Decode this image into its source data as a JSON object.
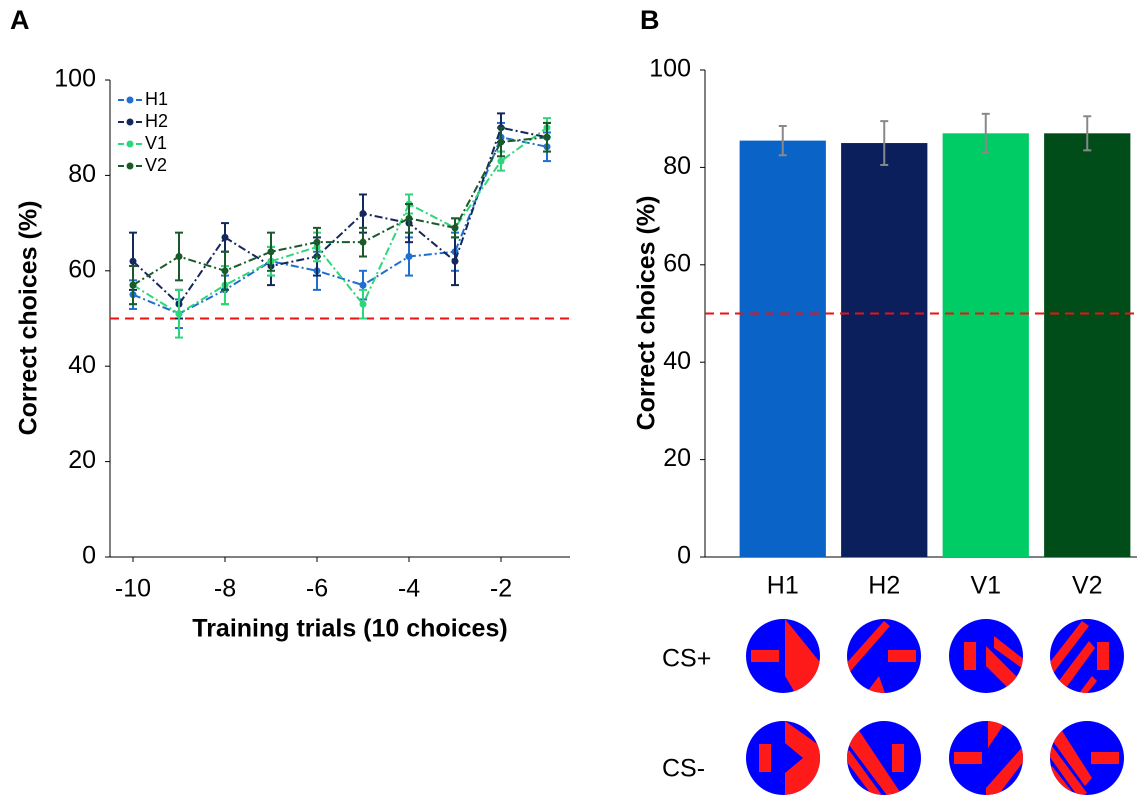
{
  "chart_data": [
    {
      "type": "line",
      "panel_label": "A",
      "xlabel": "Training trials (10 choices)",
      "ylabel": "Correct choices (%)",
      "x": [
        -10,
        -9,
        -8,
        -7,
        -6,
        -5,
        -4,
        -3,
        -2,
        -1
      ],
      "xlim": [
        -10.5,
        -0.5
      ],
      "xticks": [
        -10,
        -8,
        -6,
        -4,
        -2
      ],
      "ylim": [
        0,
        100
      ],
      "yticks": [
        0,
        20,
        40,
        60,
        80,
        100
      ],
      "hline": 50,
      "hline_color": "#ee1111",
      "legend": "upper left",
      "series": [
        {
          "name": "H1",
          "color": "#1f6fd0",
          "values": [
            55,
            51,
            56,
            62,
            60,
            57,
            63,
            64,
            88,
            86
          ],
          "errors": [
            3,
            3,
            3,
            3,
            4,
            3,
            4,
            4,
            3,
            3
          ]
        },
        {
          "name": "H2",
          "color": "#14285e",
          "values": [
            62,
            53,
            67,
            61,
            63,
            72,
            70,
            62,
            90,
            88
          ],
          "errors": [
            6,
            3,
            3,
            4,
            4,
            4,
            4,
            5,
            3,
            3
          ]
        },
        {
          "name": "V1",
          "color": "#2ed67a",
          "values": [
            57,
            51,
            57,
            62,
            65,
            53,
            74,
            69,
            83,
            90
          ],
          "errors": [
            4,
            5,
            4,
            3,
            3,
            3,
            2,
            2,
            2,
            2
          ]
        },
        {
          "name": "V2",
          "color": "#1a5a2a",
          "values": [
            57,
            63,
            60,
            64,
            66,
            66,
            71,
            69,
            87,
            88
          ],
          "errors": [
            4,
            5,
            4,
            4,
            3,
            3,
            3,
            2,
            3,
            3
          ]
        }
      ]
    },
    {
      "type": "bar",
      "panel_label": "B",
      "ylabel": "Correct choices (%)",
      "categories": [
        "H1",
        "H2",
        "V1",
        "V2"
      ],
      "values": [
        85.5,
        85,
        87,
        87
      ],
      "errors": [
        3,
        4.5,
        4,
        3.5
      ],
      "colors": [
        "#0a64c8",
        "#0a1f5c",
        "#00cc66",
        "#004d1a"
      ],
      "error_color": "#888888",
      "ylim": [
        0,
        100
      ],
      "yticks": [
        0,
        20,
        40,
        60,
        80,
        100
      ],
      "hline": 50,
      "hline_color": "#ee1111",
      "row_labels": [
        "CS+",
        "CS-"
      ]
    }
  ]
}
